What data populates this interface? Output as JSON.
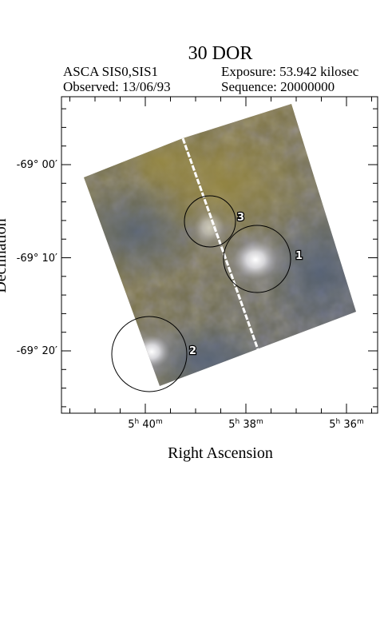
{
  "header": {
    "title": "30 DOR",
    "instrument": "ASCA SIS0,SIS1",
    "observed": "Observed: 13/06/93",
    "exposure": "Exposure: 53.942 kilosec",
    "sequence": "Sequence: 20000000"
  },
  "axes": {
    "x_label": "Right Ascension",
    "y_label": "Declination",
    "x_ticks": [
      {
        "h": "5",
        "hu": "h",
        "m": "40",
        "mu": "m"
      },
      {
        "h": "5",
        "hu": "h",
        "m": "38",
        "mu": "m"
      },
      {
        "h": "5",
        "hu": "h",
        "m": "36",
        "mu": "m"
      }
    ],
    "y_ticks": [
      "-69° 00′",
      "-69° 10′",
      "-69° 20′"
    ]
  },
  "sources": [
    {
      "id": "1",
      "label": "1"
    },
    {
      "id": "2",
      "label": "2"
    },
    {
      "id": "3",
      "label": "3"
    }
  ],
  "colors": {
    "image_olive": "#7c7141",
    "image_blue": "#556070",
    "image_bright": "#f4f4f4"
  }
}
